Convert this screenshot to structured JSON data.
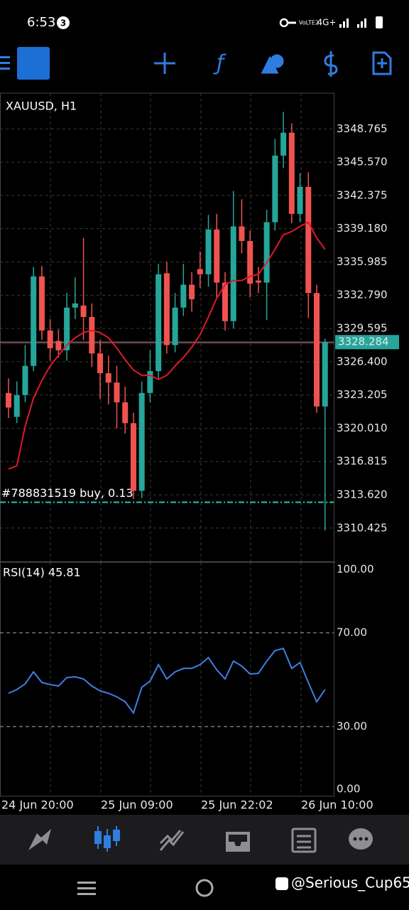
{
  "status_bar": {
    "time": "6:53",
    "badge": "3",
    "volte": "VoLTE2",
    "network": "4G+"
  },
  "watermark": "@Serious_Cup65",
  "chart_data": {
    "type": "candlestick",
    "title": "XAUUSD, H1",
    "open": [
      3323.4,
      3321.1,
      3323.2,
      3326.0,
      3334.6,
      3329.4,
      3328.4,
      3327.5,
      3331.6,
      3331.8,
      3330.7,
      3327.2,
      3325.3,
      3324.4,
      3322.5,
      3320.5,
      3314.0,
      3323.4,
      3325.5,
      3334.9,
      3328.0,
      3331.6,
      3333.8,
      3335.3,
      3334.8,
      3339.1,
      3334.0,
      3330.3,
      3339.4,
      3338.0,
      3334.2,
      3334.0,
      3339.8,
      3346.2,
      3348.4,
      3340.6,
      3343.2,
      3333.0,
      3322.1
    ],
    "high": [
      3324.8,
      3324.5,
      3328.0,
      3335.5,
      3335.6,
      3330.5,
      3329.5,
      3333.0,
      3334.5,
      3338.3,
      3332.0,
      3328.5,
      3327.0,
      3326.0,
      3324.0,
      3321.5,
      3324.5,
      3327.5,
      3335.8,
      3336.0,
      3333.0,
      3335.8,
      3335.0,
      3337.0,
      3340.5,
      3340.6,
      3335.0,
      3342.8,
      3342.0,
      3339.0,
      3335.5,
      3341.0,
      3347.8,
      3350.4,
      3349.3,
      3344.5,
      3344.6,
      3333.8,
      3328.6
    ],
    "low": [
      3321.0,
      3320.5,
      3322.5,
      3325.5,
      3328.5,
      3326.5,
      3326.8,
      3326.5,
      3330.5,
      3328.5,
      3325.9,
      3322.8,
      3322.3,
      3320.0,
      3319.5,
      3313.2,
      3313.3,
      3322.5,
      3324.8,
      3327.2,
      3327.3,
      3330.8,
      3331.2,
      3333.5,
      3333.6,
      3332.5,
      3329.4,
      3329.6,
      3336.8,
      3332.6,
      3333.0,
      3330.4,
      3339.0,
      3345.0,
      3339.7,
      3339.8,
      3330.6,
      3321.5,
      3310.2
    ],
    "close": [
      3322.0,
      3323.2,
      3326.0,
      3334.6,
      3329.4,
      3327.7,
      3327.5,
      3331.6,
      3332.0,
      3330.7,
      3327.2,
      3325.3,
      3324.4,
      3322.5,
      3320.5,
      3314.0,
      3323.4,
      3325.5,
      3334.8,
      3328.0,
      3331.6,
      3333.8,
      3332.4,
      3334.8,
      3339.1,
      3334.0,
      3330.3,
      3339.4,
      3338.0,
      3333.9,
      3334.0,
      3339.8,
      3346.2,
      3348.4,
      3340.6,
      3343.2,
      3333.0,
      3322.1,
      3328.3
    ],
    "up_color": "#26a69a",
    "down_color": "#ef5350",
    "ma": {
      "color": "#e0192a",
      "values": [
        3316.1,
        3316.4,
        3320.2,
        3322.9,
        3324.6,
        3326.0,
        3327.0,
        3328.0,
        3328.7,
        3329.2,
        3329.4,
        3329.2,
        3328.7,
        3327.7,
        3326.6,
        3325.6,
        3325.1,
        3325.1,
        3324.7,
        3325.1,
        3326.0,
        3326.8,
        3327.8,
        3329.0,
        3330.7,
        3332.5,
        3333.8,
        3334.2,
        3334.2,
        3334.6,
        3334.8,
        3335.9,
        3337.2,
        3338.6,
        3338.9,
        3339.4,
        3339.8,
        3338.3,
        3337.2
      ]
    },
    "ylim": [
      3307.2,
      3352.2
    ],
    "yticks": [
      3310.425,
      {
        "value": 3313.62,
        "label": "3313.620"
      },
      3316.815,
      {
        "value": 3320.01,
        "label": "3320.010"
      },
      3323.205,
      {
        "value": 3326.4,
        "label": "3326.400"
      },
      3329.595,
      {
        "value": 3332.79,
        "label": "3332.790"
      },
      3335.985,
      {
        "value": 3339.18,
        "label": "3339.180"
      },
      3342.375,
      {
        "value": 3345.57,
        "label": "3345.570"
      },
      3348.765
    ],
    "current_price": 3328.284,
    "order": {
      "label": "#788831519 buy, 0.13",
      "price": 3312.9
    },
    "x_labels": [
      "24 Jun 20:00",
      "25 Jun 09:00",
      "25 Jun 22:02",
      "26 Jun 10:00"
    ],
    "rsi": {
      "title": "RSI(14) 45.81",
      "color": "#3f7fe0",
      "values": [
        44.2,
        45.8,
        48.2,
        53.3,
        48.8,
        47.9,
        47.3,
        50.9,
        51.2,
        50.3,
        47.3,
        45.2,
        44.2,
        42.7,
        40.6,
        35.8,
        46.7,
        49.4,
        56.4,
        50.3,
        53.3,
        54.8,
        54.8,
        56.4,
        59.4,
        54.2,
        50.3,
        57.9,
        55.8,
        52.4,
        52.7,
        57.9,
        62.4,
        63.3,
        54.8,
        57.3,
        48.8,
        40.6,
        45.8
      ],
      "ylim": [
        0,
        100
      ],
      "yticks": [
        {
          "value": 0,
          "label": "0.00"
        },
        {
          "value": 30,
          "label": "30.00"
        },
        {
          "value": 70,
          "label": "70.00"
        },
        {
          "value": 100,
          "label": "100.00"
        }
      ]
    }
  }
}
